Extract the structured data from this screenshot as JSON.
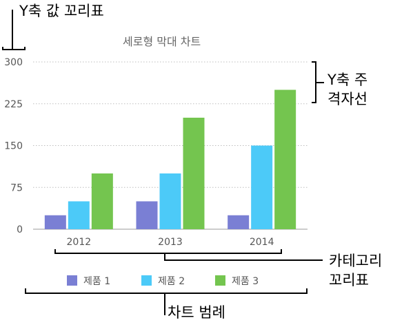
{
  "annotations": {
    "y_tick_labels": "Y축 값 꼬리표",
    "y_gridlines_line1": "Y축 주",
    "y_gridlines_line2": "격자선",
    "category_labels_line1": "카테고리",
    "category_labels_line2": "꼬리표",
    "legend": "차트 범례"
  },
  "colors": {
    "series": [
      "#7a7fd4",
      "#4ccaf8",
      "#74c54f"
    ],
    "gridline": "#bdbdbd",
    "axis_text": "#555555",
    "annotation_line": "#000000"
  },
  "chart_data": {
    "type": "bar",
    "title": "세로형 막대 차트",
    "categories": [
      "2012",
      "2013",
      "2014"
    ],
    "series": [
      {
        "name": "제품 1",
        "values": [
          25,
          50,
          25
        ]
      },
      {
        "name": "제품 2",
        "values": [
          50,
          100,
          150
        ]
      },
      {
        "name": "제품 3",
        "values": [
          100,
          200,
          250
        ]
      }
    ],
    "yticks": [
      "0",
      "75",
      "150",
      "225",
      "300"
    ],
    "ylim": [
      0,
      300
    ],
    "grid": true,
    "legend_position": "bottom"
  }
}
